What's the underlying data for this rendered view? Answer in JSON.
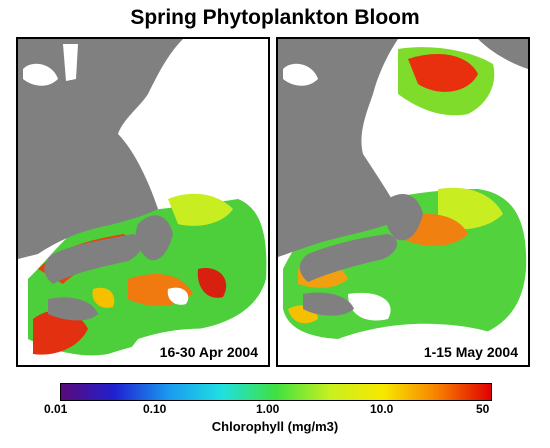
{
  "title": "Spring Phytoplankton Bloom",
  "panels": [
    {
      "date_label": "16-30 Apr 2004"
    },
    {
      "date_label": "1-15 May 2004"
    }
  ],
  "colorbar": {
    "tick_labels": [
      "0.01",
      "0.10",
      "1.00",
      "10.0",
      "50"
    ],
    "title": "Chlorophyll (mg/m3)",
    "colors": [
      "#5a0a7a",
      "#2020d0",
      "#1a9af0",
      "#20e0e0",
      "#40e040",
      "#c8f020",
      "#f8e800",
      "#f88000",
      "#e00000"
    ]
  },
  "colors": {
    "land": "#808080",
    "no_data": "#ffffff",
    "low_chl": "#40d040",
    "mid_chl": "#c8f020",
    "high_chl": "#e83010"
  }
}
